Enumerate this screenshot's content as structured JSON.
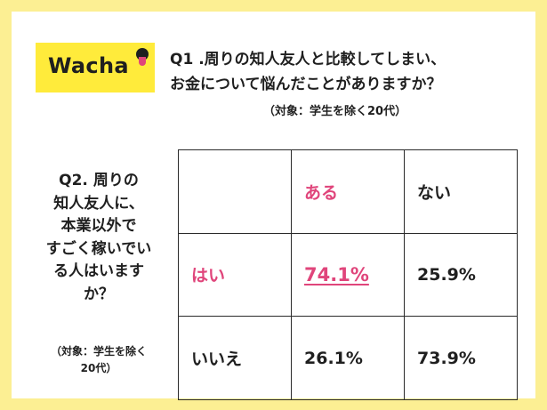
{
  "logo": {
    "text": "Wacha"
  },
  "colors": {
    "frame": "#fcef93",
    "logo_bg": "#ffeb3b",
    "accent": "#e0457b",
    "text": "#1f1f1f"
  },
  "q1": {
    "lines": [
      "Q1 .周りの知人友人と比較してしまい、",
      "お金について悩んだことがありますか？"
    ],
    "note": "（対象：学生を除く20代）"
  },
  "q2": {
    "lines": [
      "Q2. 周りの",
      "知人友人に、",
      "本業以外で",
      "すごく稼いでい",
      "る人はいます",
      "か？"
    ],
    "note_lines": [
      "（対象：学生を除く",
      "20代）"
    ]
  },
  "table": {
    "header": [
      "",
      "ある",
      "ない"
    ],
    "rows": [
      {
        "label": "はい",
        "cells": [
          "74.1%",
          "25.9%"
        ]
      },
      {
        "label": "いいえ",
        "cells": [
          "26.1%",
          "73.9%"
        ]
      }
    ]
  }
}
